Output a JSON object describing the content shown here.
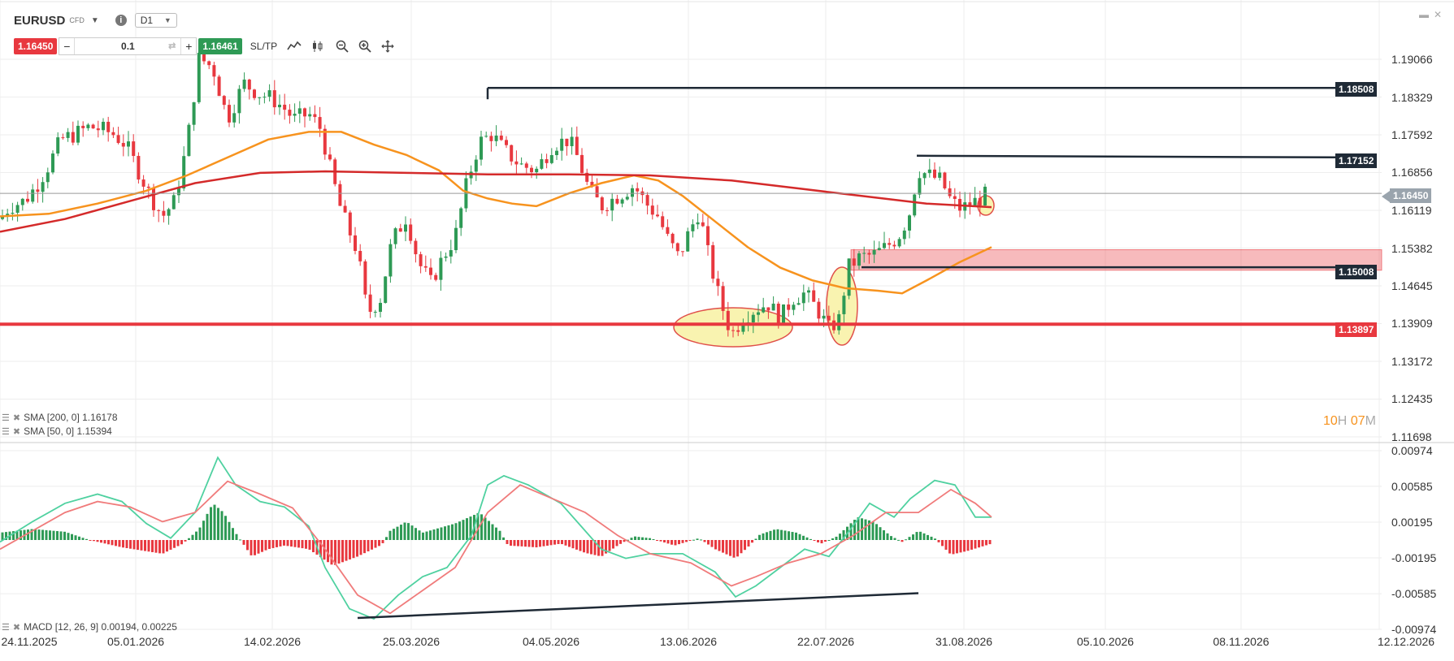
{
  "toolbar": {
    "symbol": "EURUSD",
    "symbol_type": "CFD",
    "timeframe": "D1",
    "sell_price": "1.16450",
    "buy_price": "1.16461",
    "quantity": "0.1",
    "minus": "−",
    "plus": "+",
    "sltp_label": "SL/TP",
    "info_glyph": "i",
    "icons": [
      "info-icon",
      "line-chart-icon",
      "candle-chart-icon",
      "zoom-out-icon",
      "zoom-in-icon",
      "crosshair-icon"
    ]
  },
  "window": {
    "minimize_glyph": "▬",
    "close_glyph": "✕"
  },
  "price_axis": {
    "labels": [
      "1.19066",
      "1.18329",
      "1.17592",
      "1.16856",
      "1.16119",
      "1.15382",
      "1.14645",
      "1.13909",
      "1.13172",
      "1.12435",
      "1.11698"
    ]
  },
  "macd_axis": {
    "labels": [
      "0.00974",
      "0.00585",
      "0.00195",
      "-0.00195",
      "-0.00585",
      "-0.00974"
    ]
  },
  "time_axis": {
    "labels": [
      "24.11.2025",
      "05.01.2026",
      "14.02.2026",
      "25.03.2026",
      "04.05.2026",
      "13.06.2026",
      "22.07.2026",
      "31.08.2026",
      "05.10.2026",
      "08.11.2026",
      "12.12.2026"
    ]
  },
  "levels": {
    "resistance_high": "1.18508",
    "resistance_mid": "1.17152",
    "current": "1.16450",
    "support_zone": "1.15008",
    "support_low": "1.13897"
  },
  "indicators": {
    "sma200": "SMA [200, 0] 1.16178",
    "sma50": "SMA [50, 0] 1.15394",
    "macd": "MACD [12, 26, 9] 0.00194, 0.00225"
  },
  "countdown": {
    "hours": "10",
    "h_unit": "H",
    "minutes": "07",
    "m_unit": "M"
  },
  "colors": {
    "bull": "#2e9a55",
    "bear": "#e8383f",
    "sma50": "#f7931e",
    "sma200": "#d42a2a",
    "level_dark": "#1f2a36",
    "level_red": "#e8383f",
    "current_tag": "#9aa4ad",
    "macd_line": "#4fd1a0",
    "signal_line": "#f07b7b",
    "ellipse_fill": "#f9f3b0",
    "ellipse_stroke": "#e0504a"
  },
  "chart_data": [
    {
      "type": "candlestick",
      "title": "EURUSD CFD D1",
      "x_range": [
        "24.11.2025",
        "12.12.2026"
      ],
      "y_range": [
        1.11698,
        1.19066
      ],
      "last_close": 1.1645,
      "series": [
        {
          "name": "SMA [200, 0]",
          "value": 1.16178
        },
        {
          "name": "SMA [50, 0]",
          "value": 1.15394
        }
      ],
      "horizontal_levels": [
        1.18508,
        1.17152,
        1.15008,
        1.13897
      ],
      "support_zone": [
        1.1495,
        1.1535
      ]
    },
    {
      "type": "bar",
      "title": "MACD [12, 26, 9]",
      "y_range": [
        -0.00974,
        0.00974
      ],
      "macd": 0.00194,
      "signal": 0.00225
    }
  ]
}
